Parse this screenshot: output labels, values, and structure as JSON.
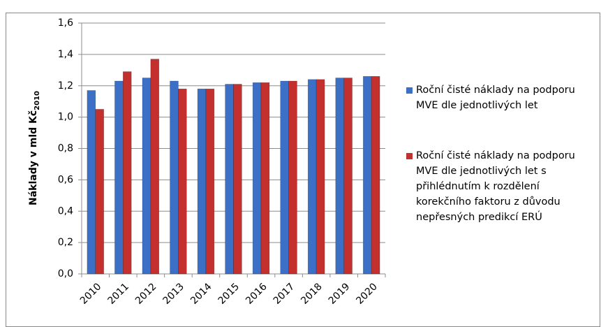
{
  "chart_data": {
    "type": "bar",
    "ylabel": "Náklady v mld Kč",
    "ylabel_sub": "2010",
    "categories": [
      "2010",
      "2011",
      "2012",
      "2013",
      "2014",
      "2015",
      "2016",
      "2017",
      "2018",
      "2019",
      "2020"
    ],
    "series": [
      {
        "name": "Roční čisté náklady na podporu MVE dle jednotlivých let",
        "color": "#3b70c6",
        "values": [
          1.17,
          1.23,
          1.25,
          1.23,
          1.18,
          1.21,
          1.22,
          1.23,
          1.24,
          1.25,
          1.26
        ]
      },
      {
        "name": "Roční čisté náklady na podporu MVE dle jednotlivých let s přihlédnutím k rozdělení korekčního faktoru z důvodu nepřesných predikcí ERÚ",
        "color": "#c3302d",
        "values": [
          1.05,
          1.29,
          1.37,
          1.18,
          1.18,
          1.21,
          1.22,
          1.23,
          1.24,
          1.25,
          1.26
        ]
      }
    ],
    "ylim": [
      0,
      1.6
    ],
    "yticks": [
      {
        "value": 0,
        "label": "0,0"
      },
      {
        "value": 0.2,
        "label": "0,2"
      },
      {
        "value": 0.4,
        "label": "0,4"
      },
      {
        "value": 0.6,
        "label": "0,6"
      },
      {
        "value": 0.8,
        "label": "0,8"
      },
      {
        "value": 1.0,
        "label": "1,0"
      },
      {
        "value": 1.2,
        "label": "1,2"
      },
      {
        "value": 1.4,
        "label": "1,4"
      },
      {
        "value": 1.6,
        "label": "1,6"
      }
    ],
    "grid": true,
    "legend": "right"
  }
}
